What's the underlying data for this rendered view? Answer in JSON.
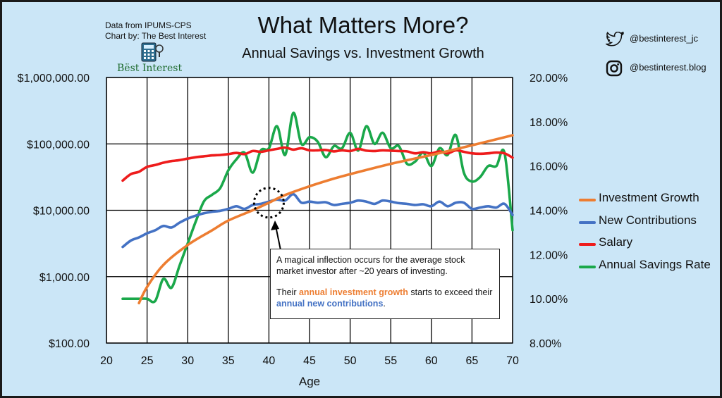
{
  "header": {
    "title": "What Matters More?",
    "subtitle": "Annual Savings vs. Investment Growth",
    "source": "Data from IPUMS-CPS",
    "credit": "Chart by: The Best Interest",
    "brand": "Bëst Interest"
  },
  "social": {
    "twitter": "@bestinterest_jc",
    "instagram": "@bestinterest.blog"
  },
  "annotation": {
    "line1": "A magical inflection occurs for the average stock market investor after ~20 years of investing.",
    "line2_pre": "Their",
    "line2_orange": "annual investment growth",
    "line2_mid": "starts to exceed their",
    "line2_blue": "annual new contributions",
    "line2_end": "."
  },
  "colors": {
    "investment_growth": "#ed7d31",
    "new_contributions": "#4472c4",
    "salary": "#ee1c1c",
    "savings_rate": "#1aa84a",
    "background": "#cbe6f7"
  },
  "chart_data": {
    "type": "line",
    "xlabel": "Age",
    "ylabel": "",
    "x_ticks": [
      "20",
      "25",
      "30",
      "35",
      "40",
      "45",
      "50",
      "55",
      "60",
      "65",
      "70"
    ],
    "xlim": [
      20,
      70
    ],
    "y_left": {
      "scale": "log",
      "lim": [
        100,
        1000000
      ],
      "tick_values": [
        100,
        1000,
        10000,
        100000,
        1000000
      ],
      "tick_labels": [
        "$100.00",
        "$1,000.00",
        "$10,000.00",
        "$100,000.00",
        "$1,000,000.00"
      ]
    },
    "y_right": {
      "scale": "linear",
      "lim": [
        8,
        20
      ],
      "tick_values": [
        8,
        10,
        12,
        14,
        16,
        18,
        20
      ],
      "tick_labels": [
        "8.00%",
        "10.00%",
        "12.00%",
        "14.00%",
        "16.00%",
        "18.00%",
        "20.00%"
      ]
    },
    "grid": true,
    "legend_position": "right",
    "series": [
      {
        "name": "Investment Growth",
        "axis": "left",
        "color": "#ed7d31",
        "x": [
          24,
          25,
          27,
          30,
          33,
          35,
          38,
          40,
          42,
          45,
          48,
          50,
          55,
          60,
          65,
          70
        ],
        "y": [
          400,
          700,
          1500,
          3000,
          5000,
          7000,
          10000,
          13000,
          17000,
          23000,
          30000,
          35000,
          50000,
          68000,
          95000,
          135000
        ]
      },
      {
        "name": "New Contributions",
        "axis": "left",
        "color": "#4472c4",
        "x": [
          22,
          23,
          24,
          25,
          26,
          27,
          28,
          29,
          30,
          31,
          32,
          33,
          34,
          35,
          36,
          37,
          38,
          39,
          40,
          41,
          42,
          43,
          44,
          45,
          46,
          47,
          48,
          49,
          50,
          51,
          52,
          53,
          54,
          55,
          56,
          57,
          58,
          59,
          60,
          61,
          62,
          63,
          64,
          65,
          66,
          67,
          68,
          69,
          70
        ],
        "y": [
          2800,
          3500,
          3900,
          4500,
          5000,
          5800,
          5500,
          6500,
          7500,
          8300,
          9000,
          9500,
          9800,
          10500,
          11500,
          10500,
          12000,
          12500,
          13500,
          14500,
          14000,
          17500,
          13000,
          13500,
          13000,
          13200,
          12000,
          12500,
          13000,
          14000,
          13500,
          12500,
          14000,
          13500,
          12800,
          12500,
          12000,
          12300,
          11500,
          13500,
          11500,
          13000,
          13000,
          10500,
          11000,
          11500,
          11000,
          12500,
          8500
        ]
      },
      {
        "name": "Salary",
        "axis": "left",
        "color": "#ee1c1c",
        "x": [
          22,
          23,
          24,
          25,
          26,
          27,
          28,
          29,
          30,
          31,
          32,
          33,
          34,
          35,
          36,
          37,
          38,
          39,
          40,
          41,
          42,
          43,
          44,
          45,
          46,
          47,
          48,
          49,
          50,
          51,
          52,
          53,
          54,
          55,
          56,
          57,
          58,
          59,
          60,
          61,
          62,
          63,
          64,
          65,
          66,
          67,
          68,
          69,
          70
        ],
        "y": [
          28000,
          35000,
          38000,
          45000,
          48000,
          52000,
          55000,
          57000,
          60000,
          63000,
          65000,
          67000,
          68000,
          70000,
          73000,
          70000,
          78000,
          76000,
          80000,
          84000,
          88000,
          82000,
          86000,
          80000,
          80000,
          81000,
          77000,
          80000,
          78000,
          84000,
          79000,
          78000,
          80000,
          79000,
          78000,
          77000,
          72000,
          75000,
          72000,
          77000,
          72000,
          80000,
          76000,
          72000,
          71000,
          72000,
          74000,
          72000,
          62000
        ]
      },
      {
        "name": "Annual Savings Rate",
        "axis": "right",
        "color": "#1aa84a",
        "x": [
          22,
          23,
          24,
          25,
          26,
          27,
          28,
          29,
          30,
          31,
          32,
          33,
          34,
          35,
          36,
          37,
          38,
          39,
          40,
          41,
          42,
          43,
          44,
          45,
          46,
          47,
          48,
          49,
          50,
          51,
          52,
          53,
          54,
          55,
          56,
          57,
          58,
          59,
          60,
          61,
          62,
          63,
          64,
          65,
          66,
          67,
          68,
          69,
          70
        ],
        "y": [
          10.0,
          10.0,
          10.0,
          10.0,
          9.9,
          10.9,
          10.5,
          11.5,
          12.5,
          13.5,
          14.4,
          14.7,
          15.0,
          15.8,
          16.3,
          16.6,
          15.7,
          16.7,
          16.8,
          17.8,
          16.5,
          18.4,
          17.0,
          17.3,
          17.1,
          16.4,
          16.9,
          16.8,
          17.5,
          16.7,
          17.8,
          17.0,
          17.5,
          16.8,
          16.9,
          16.1,
          16.2,
          16.6,
          16.0,
          16.8,
          16.5,
          17.4,
          15.7,
          15.3,
          15.5,
          16.0,
          16.0,
          16.6,
          13.1
        ]
      }
    ]
  }
}
